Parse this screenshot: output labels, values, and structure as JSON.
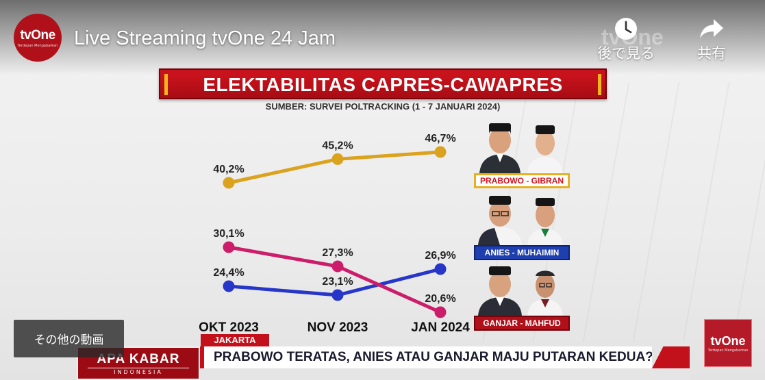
{
  "header": {
    "channel_logo": "tvOne",
    "channel_tagline": "Terdepan Mengabarkan",
    "video_title": "Live Streaming tvOne 24 Jam",
    "watch_later_label": "後で見る",
    "share_label": "共有",
    "watch_later_icon": "clock-icon",
    "share_icon": "share-arrow-icon",
    "watermark": "tvOne"
  },
  "chart_title": "ELEKTABILITAS CAPRES-CAWAPRES",
  "chart_source": "SUMBER: SURVEI POLTRACKING (1 - 7 JANUARI 2024)",
  "chart_data": {
    "type": "line",
    "title": "ELEKTABILITAS CAPRES-CAWAPRES",
    "subtitle": "SUMBER: SURVEI POLTRACKING (1 - 7 JANUARI 2024)",
    "x": [
      "OKT 2023",
      "NOV 2023",
      "JAN 2024"
    ],
    "series": [
      {
        "name": "PRABOWO - GIBRAN",
        "values": [
          40.2,
          45.2,
          46.7
        ],
        "labels": [
          "40,2%",
          "45,2%",
          "46,7%"
        ],
        "color": "#dba31d"
      },
      {
        "name": "ANIES - MUHAIMIN",
        "values": [
          24.4,
          23.1,
          26.9
        ],
        "labels": [
          "24,4%",
          "23,1%",
          "26,9%"
        ],
        "color": "#2636c8"
      },
      {
        "name": "GANJAR - MAHFUD",
        "values": [
          30.1,
          27.3,
          20.6
        ],
        "labels": [
          "30,1%",
          "27,3%",
          "20,6%"
        ],
        "color": "#cc1d6b"
      }
    ],
    "legend": "right",
    "grid": false
  },
  "candidates": [
    {
      "label": "PRABOWO - GIBRAN",
      "color": "#d4131d"
    },
    {
      "label": "ANIES - MUHAIMIN",
      "color": "#1f3fae"
    },
    {
      "label": "GANJAR - MAHFUD",
      "color": "#b0101a"
    }
  ],
  "more_videos_label": "その他の動画",
  "corner_logo": "tvOne",
  "corner_tagline": "Terdepan Mengabarkan",
  "lower_third": {
    "location": "JAKARTA",
    "program_name": "APA KABAR",
    "program_sub": "INDONESIA",
    "headline": "PRABOWO TERATAS, ANIES ATAU GANJAR MAJU PUTARAN KEDUA?"
  }
}
